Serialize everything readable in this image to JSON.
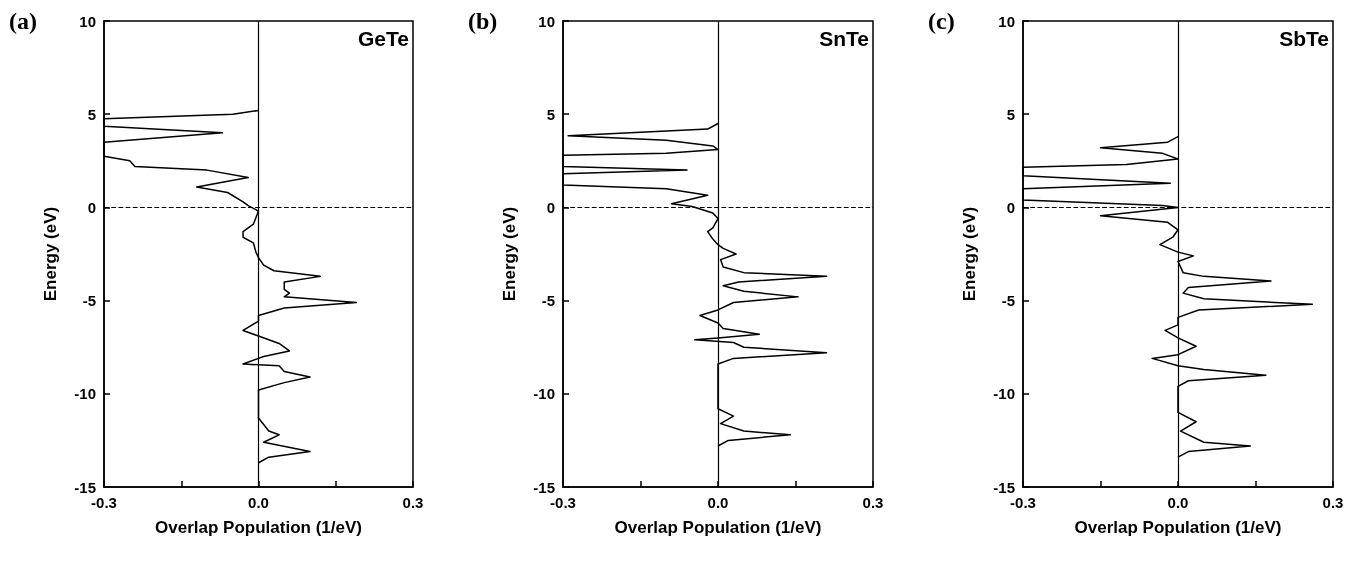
{
  "chart_data": [
    {
      "type": "line",
      "title": "(a)",
      "annotations": [
        "GeTe"
      ],
      "xlabel": "Overlap Population (1/eV)",
      "ylabel": "Energy (eV)",
      "xlim": [
        -0.3,
        0.3
      ],
      "ylim": [
        -15,
        10
      ],
      "xticks": [
        {
          "value": -0.3,
          "label": "-0.3"
        },
        {
          "value": -0.15,
          "label": null
        },
        {
          "value": 0,
          "label": "0.0"
        },
        {
          "value": 0.15,
          "label": null
        },
        {
          "value": 0.3,
          "label": "0.3"
        }
      ],
      "yticks": [
        -15,
        -10,
        -5,
        0,
        5,
        10
      ],
      "grid": false,
      "marker": "none",
      "line_style": "solid",
      "ref_lines": [
        {
          "axis": "y",
          "value": 0,
          "line_style": "dashed",
          "color": "#000000"
        },
        {
          "axis": "x",
          "value": 0,
          "line_style": "solid",
          "color": "#000000"
        }
      ],
      "series": [
        {
          "color": "#000000",
          "x": [
            0,
            -0.05,
            -0.3,
            -0.3,
            -0.07,
            -0.3,
            -0.3,
            -0.25,
            -0.24,
            -0.1,
            -0.02,
            -0.12,
            -0.06,
            -0.03,
            -0.02,
            0,
            -0.01,
            -0.03,
            -0.03,
            -0.01,
            -0.005,
            0,
            0.01,
            0.03,
            0.12,
            0.05,
            0.05,
            0.06,
            0.05,
            0.19,
            0.05,
            0,
            0,
            -0.03,
            0,
            0.04,
            0.06,
            0.01,
            -0.03,
            0.04,
            0.05,
            0.1,
            0.05,
            0,
            0,
            0.02,
            0.04,
            0.01,
            0.1,
            0.02,
            0
          ],
          "values": [
            5.2,
            5.0,
            4.75,
            4.35,
            4.0,
            3.5,
            2.75,
            2.5,
            2.2,
            2.0,
            1.6,
            1.1,
            0.8,
            0.3,
            0.1,
            -0.2,
            -0.9,
            -1.3,
            -1.6,
            -1.9,
            -2.4,
            -2.7,
            -3.1,
            -3.4,
            -3.7,
            -4.0,
            -4.4,
            -4.6,
            -4.8,
            -5.1,
            -5.4,
            -5.8,
            -6.1,
            -6.6,
            -6.9,
            -7.3,
            -7.7,
            -8.0,
            -8.4,
            -8.5,
            -8.8,
            -9.1,
            -9.4,
            -9.8,
            -11.3,
            -12.0,
            -12.2,
            -12.6,
            -13.1,
            -13.4,
            -13.7
          ]
        }
      ]
    },
    {
      "type": "line",
      "title": "(b)",
      "annotations": [
        "SnTe"
      ],
      "xlabel": "Overlap Population (1/eV)",
      "ylabel": "Energy (eV)",
      "xlim": [
        -0.3,
        0.3
      ],
      "ylim": [
        -15,
        10
      ],
      "xticks": [
        {
          "value": -0.3,
          "label": "-0.3"
        },
        {
          "value": -0.15,
          "label": null
        },
        {
          "value": 0,
          "label": "0.0"
        },
        {
          "value": 0.15,
          "label": null
        },
        {
          "value": 0.3,
          "label": "0.3"
        }
      ],
      "yticks": [
        -15,
        -10,
        -5,
        0,
        5,
        10
      ],
      "grid": false,
      "marker": "none",
      "line_style": "solid",
      "ref_lines": [
        {
          "axis": "y",
          "value": 0,
          "line_style": "dashed",
          "color": "#000000"
        },
        {
          "axis": "x",
          "value": 0,
          "line_style": "solid",
          "color": "#000000"
        }
      ],
      "series": [
        {
          "color": "#000000",
          "x": [
            0,
            -0.02,
            -0.29,
            -0.1,
            -0.01,
            0,
            -0.1,
            -0.3,
            -0.3,
            -0.06,
            -0.3,
            -0.3,
            -0.1,
            -0.02,
            -0.09,
            -0.05,
            -0.01,
            0,
            -0.01,
            -0.02,
            -0.01,
            0,
            0.01,
            0.035,
            0.005,
            0.01,
            0.05,
            0.21,
            0.04,
            0.01,
            0.05,
            0.155,
            0.03,
            0,
            -0.035,
            0,
            0.01,
            0.08,
            0,
            -0.045,
            0.03,
            0.05,
            0.21,
            0.03,
            0,
            0,
            0.03,
            0.005,
            0.05,
            0.14,
            0.02,
            0
          ],
          "values": [
            4.5,
            4.2,
            3.85,
            3.6,
            3.3,
            3.1,
            2.9,
            2.8,
            2.2,
            2.0,
            1.8,
            1.2,
            1.0,
            0.65,
            0.2,
            0.05,
            -0.3,
            -0.6,
            -1.1,
            -1.3,
            -1.7,
            -2.0,
            -2.2,
            -2.5,
            -2.8,
            -3.2,
            -3.5,
            -3.7,
            -4.0,
            -4.2,
            -4.5,
            -4.8,
            -5.1,
            -5.5,
            -5.8,
            -6.2,
            -6.5,
            -6.8,
            -7.0,
            -7.1,
            -7.25,
            -7.5,
            -7.8,
            -8.1,
            -8.4,
            -10.8,
            -11.2,
            -11.6,
            -12.0,
            -12.2,
            -12.5,
            -12.8
          ]
        }
      ]
    },
    {
      "type": "line",
      "title": "(c)",
      "annotations": [
        "SbTe"
      ],
      "xlabel": "Overlap Population (1/eV)",
      "ylabel": "Energy (eV)",
      "xlim": [
        -0.3,
        0.3
      ],
      "ylim": [
        -15,
        10
      ],
      "xticks": [
        {
          "value": -0.3,
          "label": "-0.3"
        },
        {
          "value": -0.15,
          "label": null
        },
        {
          "value": 0,
          "label": "0.0"
        },
        {
          "value": 0.15,
          "label": null
        },
        {
          "value": 0.3,
          "label": "0.3"
        }
      ],
      "yticks": [
        -15,
        -10,
        -5,
        0,
        5,
        10
      ],
      "grid": false,
      "marker": "none",
      "line_style": "solid",
      "ref_lines": [
        {
          "axis": "y",
          "value": 0,
          "line_style": "dashed",
          "color": "#000000"
        },
        {
          "axis": "x",
          "value": 0,
          "line_style": "solid",
          "color": "#000000"
        }
      ],
      "series": [
        {
          "color": "#000000",
          "x": [
            0,
            -0.02,
            -0.15,
            -0.03,
            0,
            -0.1,
            -0.3,
            -0.3,
            -0.015,
            -0.3,
            -0.3,
            -0.03,
            0,
            -0.15,
            -0.02,
            0,
            -0.01,
            -0.035,
            0,
            0.03,
            0,
            0.01,
            0.05,
            0.18,
            0.02,
            0.01,
            0.05,
            0.26,
            0.04,
            0,
            0,
            -0.025,
            0,
            0.035,
            0,
            -0.05,
            0,
            0.05,
            0.17,
            0.02,
            0,
            0,
            0.035,
            0.005,
            0.05,
            0.14,
            0.02,
            0
          ],
          "values": [
            3.8,
            3.5,
            3.2,
            2.9,
            2.6,
            2.3,
            2.15,
            1.7,
            1.3,
            1.0,
            0.4,
            0.1,
            0,
            -0.45,
            -0.8,
            -1.2,
            -1.6,
            -2.0,
            -2.4,
            -2.6,
            -2.9,
            -3.5,
            -3.7,
            -3.95,
            -4.3,
            -4.6,
            -4.9,
            -5.2,
            -5.5,
            -5.9,
            -6.3,
            -6.6,
            -7.0,
            -7.45,
            -7.9,
            -8.1,
            -8.5,
            -8.7,
            -9.0,
            -9.3,
            -9.6,
            -11.0,
            -11.5,
            -12.0,
            -12.6,
            -12.8,
            -13.1,
            -13.4
          ]
        }
      ]
    }
  ]
}
